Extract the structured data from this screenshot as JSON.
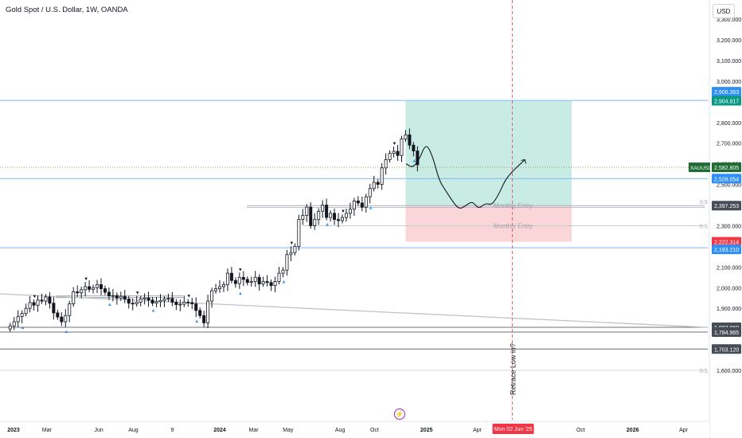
{
  "header": {
    "title": "Gold Spot / U.S. Dollar, 1W, OANDA",
    "currency": "USD"
  },
  "colors": {
    "up": "#131722",
    "down": "#131722",
    "accent_blue": "#2962ff",
    "label_blue": "#2f8ff5",
    "label_green": "#089981",
    "label_red": "#f23645",
    "profit_zone": "#c8ebe3",
    "loss_zone": "#fbd6d9",
    "event_line": "#ef5350"
  },
  "chart_data": {
    "type": "candlestick",
    "title": "Gold Spot / U.S. Dollar, 1W, OANDA",
    "ylim": [
      1550,
      3320
    ],
    "y_ticks": [
      {
        "value": 1600,
        "label": "1,600.000"
      },
      {
        "value": 1700,
        "label": "1,700.000"
      },
      {
        "value": 1800,
        "label": "1,800.000"
      },
      {
        "value": 1900,
        "label": "1,900.000"
      },
      {
        "value": 2000,
        "label": "2,000.000"
      },
      {
        "value": 2100,
        "label": "2,100.000"
      },
      {
        "value": 2200,
        "label": "2,200.000"
      },
      {
        "value": 2300,
        "label": "2,300.000"
      },
      {
        "value": 2400,
        "label": "2,400.000"
      },
      {
        "value": 2500,
        "label": "2,500.000"
      },
      {
        "value": 2600,
        "label": "2,600.000"
      },
      {
        "value": 2700,
        "label": "2,700.000"
      },
      {
        "value": 2800,
        "label": "2,800.000"
      },
      {
        "value": 2900,
        "label": "2,900.000"
      },
      {
        "value": 3000,
        "label": "3,000.000"
      },
      {
        "value": 3100,
        "label": "3,100.000"
      },
      {
        "value": 3200,
        "label": "3,200.000"
      },
      {
        "value": 3300,
        "label": "3,300.000"
      }
    ],
    "x_ticks": [
      {
        "date": "2023-01-01",
        "label": "2023"
      },
      {
        "date": "2023-03-01",
        "label": "Mar"
      },
      {
        "date": "2023-06-01",
        "label": "Jun"
      },
      {
        "date": "2023-08-01",
        "label": "Aug"
      },
      {
        "date": "2023-10-09",
        "label": "9"
      },
      {
        "date": "2024-01-01",
        "label": "2024"
      },
      {
        "date": "2024-03-01",
        "label": "Mar"
      },
      {
        "date": "2024-05-01",
        "label": "May"
      },
      {
        "date": "2024-08-01",
        "label": "Aug"
      },
      {
        "date": "2024-10-01",
        "label": "Oct"
      },
      {
        "date": "2025-01-01",
        "label": "2025"
      },
      {
        "date": "2025-04-01",
        "label": "Apr"
      },
      {
        "date": "2025-10-01",
        "label": "Oct"
      },
      {
        "date": "2026-01-01",
        "label": "2026"
      },
      {
        "date": "2026-04-01",
        "label": "Apr"
      }
    ],
    "candle_closes": [
      1815,
      1835,
      1860,
      1875,
      1900,
      1928,
      1915,
      1940,
      1935,
      1955,
      1925,
      1878,
      1858,
      1835,
      1865,
      1922,
      1980,
      1975,
      1990,
      2005,
      1992,
      2000,
      2015,
      1995,
      1978,
      1960,
      1962,
      1950,
      1958,
      1945,
      1925,
      1922,
      1930,
      1945,
      1950,
      1940,
      1925,
      1932,
      1938,
      1945,
      1948,
      1930,
      1918,
      1920,
      1930,
      1928,
      1922,
      1890,
      1865,
      1830,
      1935,
      1985,
      1995,
      2005,
      2015,
      2070,
      2035,
      2020,
      2050,
      2040,
      2025,
      2030,
      2050,
      2018,
      2030,
      2025,
      2010,
      2030,
      2070,
      2085,
      2160,
      2170,
      2200,
      2330,
      2350,
      2390,
      2300,
      2330,
      2370,
      2400,
      2340,
      2360,
      2330,
      2325,
      2340,
      2360,
      2380,
      2420,
      2410,
      2390,
      2440,
      2480,
      2510,
      2500,
      2580,
      2620,
      2650,
      2660,
      2640,
      2720,
      2740,
      2690,
      2662,
      2595
    ],
    "last_price": "2,582.805",
    "price_labels": [
      {
        "symbol": "",
        "value": "2,906.363",
        "role": "target-blue"
      },
      {
        "symbol": "",
        "value": "2,904.917",
        "role": "target-green"
      },
      {
        "symbol": "XAUUSD",
        "value": "2,582.805",
        "role": "last-price"
      },
      {
        "symbol": "",
        "value": "2,528.054",
        "role": "level-blue"
      },
      {
        "symbol": "",
        "value": "2,397.253",
        "role": "level-gray"
      },
      {
        "symbol": "",
        "value": "2,222.314",
        "role": "stop-red"
      },
      {
        "symbol": "",
        "value": "2,193.210",
        "role": "level-blue"
      },
      {
        "symbol": "",
        "value": "1,807.960",
        "role": "level-gray"
      },
      {
        "symbol": "",
        "value": "1,784.965",
        "role": "level-gray"
      },
      {
        "symbol": "",
        "value": "1,703.120",
        "role": "level-gray"
      }
    ],
    "position": {
      "entry": 2397.253,
      "target": 2904.917,
      "stop": 2222.314,
      "start_date": "2024-11-25",
      "end_date": "2025-09-15"
    },
    "annotations": [
      {
        "text": "Monthly Entry",
        "fib_label": "0.5",
        "price": 2397.253
      },
      {
        "text": "Monthly Entry",
        "fib_label": "0.5",
        "price": 2300
      },
      {
        "text": "",
        "fib_label": "0.5",
        "price": 1600
      },
      {
        "text": "Retrace Low in?",
        "fib_label": "",
        "price": 1750
      }
    ],
    "event_line": {
      "date": "2025-06-02",
      "label": "Mon 02 Jun '25"
    },
    "projection_path": [
      [
        0,
        2600
      ],
      [
        1,
        2580
      ],
      [
        2,
        2620
      ],
      [
        3,
        2700
      ],
      [
        4,
        2640
      ],
      [
        5,
        2520
      ],
      [
        6,
        2470
      ],
      [
        7,
        2420
      ],
      [
        8,
        2380
      ],
      [
        9,
        2395
      ],
      [
        10,
        2420
      ],
      [
        11,
        2380
      ],
      [
        12,
        2410
      ],
      [
        13,
        2400
      ],
      [
        14,
        2450
      ],
      [
        15,
        2520
      ],
      [
        16,
        2560
      ],
      [
        17,
        2590
      ],
      [
        18,
        2620
      ]
    ]
  }
}
